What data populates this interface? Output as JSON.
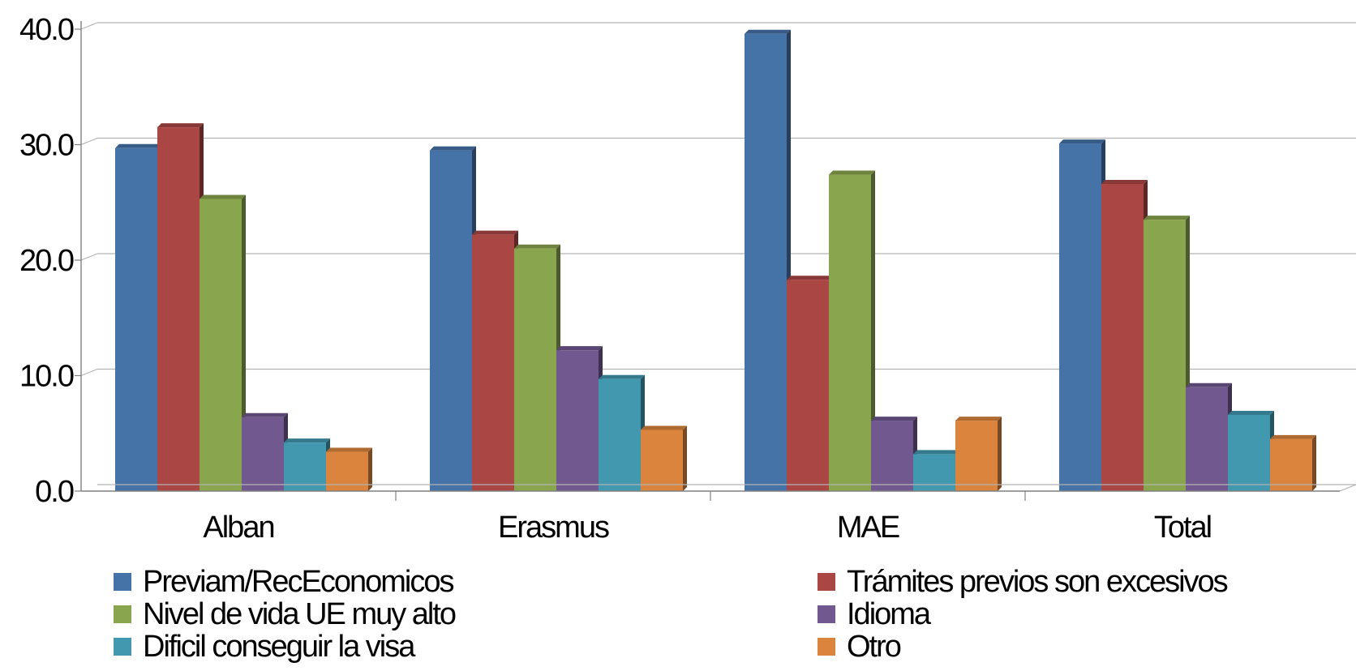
{
  "chart_data": {
    "type": "bar",
    "categories": [
      "Alban",
      "Erasmus",
      "MAE",
      "Total"
    ],
    "series": [
      {
        "name": "Previam/RecEconomicos",
        "color": "#4572a7",
        "values": [
          29.7,
          29.5,
          39.6,
          30.1
        ]
      },
      {
        "name": "Trámites previos son excesivos",
        "color": "#aa4643",
        "values": [
          31.5,
          22.2,
          18.3,
          26.6
        ]
      },
      {
        "name": "Nivel de vida UE muy alto",
        "color": "#89a54e",
        "values": [
          25.3,
          21.0,
          27.4,
          23.5
        ]
      },
      {
        "name": "Idioma",
        "color": "#71588f",
        "values": [
          6.4,
          12.2,
          6.1,
          9.0
        ]
      },
      {
        "name": "Dificil conseguir la visa",
        "color": "#4198af",
        "values": [
          4.2,
          9.7,
          3.2,
          6.6
        ]
      },
      {
        "name": "Otro",
        "color": "#db843d",
        "values": [
          3.4,
          5.3,
          6.1,
          4.5
        ]
      }
    ],
    "ylim": [
      0,
      40
    ],
    "yticks": [
      "0.0",
      "10.0",
      "20.0",
      "30.0",
      "40.0"
    ],
    "title": "",
    "xlabel": "",
    "ylabel": "",
    "grid": true,
    "legend_position": "bottom"
  }
}
